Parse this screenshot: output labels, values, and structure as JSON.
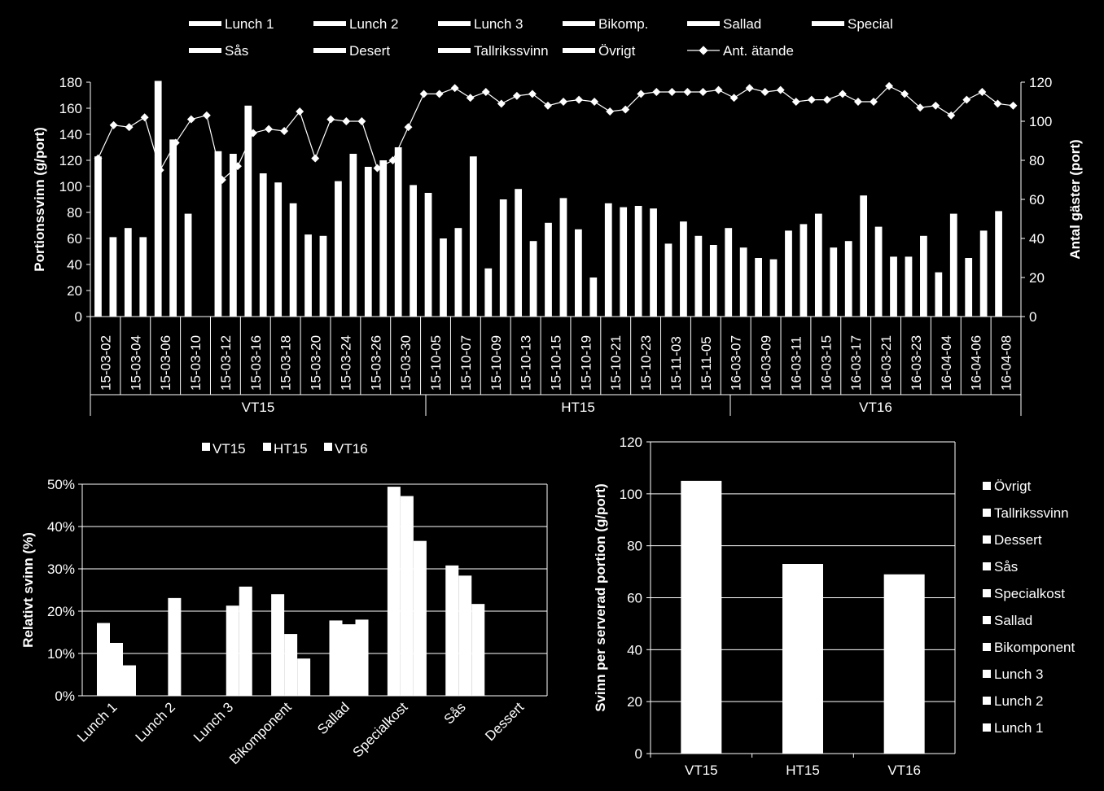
{
  "chart_data": [
    {
      "type": "bar",
      "ylabel": "Portionssvinn (g/port)",
      "y2label": "Antal gäster (port)",
      "ylim": [
        0,
        180
      ],
      "y2lim": [
        0,
        120
      ],
      "yticks": [
        0,
        20,
        40,
        60,
        80,
        100,
        120,
        140,
        160,
        180
      ],
      "y2ticks": [
        0,
        20,
        40,
        60,
        80,
        100,
        120
      ],
      "grid": false,
      "legend_position": "top",
      "legend": [
        "Lunch 1",
        "Lunch 2",
        "Lunch 3",
        "Bikomp.",
        "Sallad",
        "Special",
        "Sås",
        "Desert",
        "Tallrikssvinn",
        "Övrigt",
        "Ant. ätande"
      ],
      "x_labels_shown": [
        "15-03-02",
        "15-03-04",
        "15-03-06",
        "15-03-10",
        "15-03-12",
        "15-03-16",
        "15-03-18",
        "15-03-20",
        "15-03-24",
        "15-03-26",
        "15-03-30",
        "15-10-05",
        "15-10-07",
        "15-10-09",
        "15-10-13",
        "15-10-15",
        "15-10-19",
        "15-10-21",
        "15-10-23",
        "15-11-03",
        "15-11-05",
        "16-03-07",
        "16-03-09",
        "16-03-11",
        "16-03-15",
        "16-03-17",
        "16-03-21",
        "16-03-23",
        "16-04-04",
        "16-04-06",
        "16-04-08"
      ],
      "groups": [
        {
          "label": "VT15",
          "start": 0,
          "count": 22
        },
        {
          "label": "HT15",
          "start": 22,
          "count": 20
        },
        {
          "label": "VT16",
          "start": 42,
          "count": 20
        }
      ],
      "num_slots": 62,
      "bars": [
        {
          "slot": 0,
          "value": 123
        },
        {
          "slot": 2,
          "value": 61
        },
        {
          "slot": 4,
          "value": 68
        },
        {
          "slot": 6,
          "value": 61
        },
        {
          "slot": 8,
          "value": 181
        },
        {
          "slot": 10,
          "value": 136
        },
        {
          "slot": 12,
          "value": 79
        },
        {
          "slot": 16,
          "value": 127
        },
        {
          "slot": 18,
          "value": 125
        },
        {
          "slot": 20,
          "value": 162
        },
        {
          "slot": 22,
          "value": 110
        },
        {
          "slot": 24,
          "value": 103
        },
        {
          "slot": 26,
          "value": 87
        },
        {
          "slot": 28,
          "value": 63
        },
        {
          "slot": 30,
          "value": 62
        },
        {
          "slot": 32,
          "value": 104
        },
        {
          "slot": 34,
          "value": 125
        },
        {
          "slot": 36,
          "value": 115
        },
        {
          "slot": 38,
          "value": 120
        },
        {
          "slot": 40,
          "value": 130
        },
        {
          "slot": 42,
          "value": 101
        },
        {
          "slot": 44,
          "value": 95
        },
        {
          "slot": 46,
          "value": 60
        },
        {
          "slot": 48,
          "value": 68
        },
        {
          "slot": 50,
          "value": 123
        },
        {
          "slot": 52,
          "value": 37
        },
        {
          "slot": 54,
          "value": 90
        },
        {
          "slot": 56,
          "value": 98
        },
        {
          "slot": 58,
          "value": 58
        },
        {
          "slot": 60,
          "value": 72
        },
        {
          "slot": 62,
          "value": 91
        },
        {
          "slot": 64,
          "value": 67
        },
        {
          "slot": 66,
          "value": 30
        },
        {
          "slot": 68,
          "value": 87
        },
        {
          "slot": 70,
          "value": 84
        },
        {
          "slot": 72,
          "value": 85
        },
        {
          "slot": 74,
          "value": 83
        },
        {
          "slot": 76,
          "value": 56
        },
        {
          "slot": 78,
          "value": 73
        },
        {
          "slot": 80,
          "value": 62
        },
        {
          "slot": 82,
          "value": 55
        },
        {
          "slot": 84,
          "value": 68
        },
        {
          "slot": 86,
          "value": 53
        },
        {
          "slot": 88,
          "value": 45
        },
        {
          "slot": 90,
          "value": 44
        },
        {
          "slot": 92,
          "value": 66
        },
        {
          "slot": 94,
          "value": 71
        },
        {
          "slot": 96,
          "value": 79
        },
        {
          "slot": 98,
          "value": 53
        },
        {
          "slot": 100,
          "value": 58
        },
        {
          "slot": 102,
          "value": 93
        },
        {
          "slot": 104,
          "value": 69
        },
        {
          "slot": 106,
          "value": 46
        },
        {
          "slot": 108,
          "value": 46
        },
        {
          "slot": 110,
          "value": 62
        },
        {
          "slot": 112,
          "value": 34
        },
        {
          "slot": 114,
          "value": 79
        },
        {
          "slot": 116,
          "value": 45
        },
        {
          "slot": 118,
          "value": 66
        },
        {
          "slot": 120,
          "value": 81
        }
      ],
      "line": {
        "name": "Ant. ätande",
        "values": [
          81,
          98,
          97,
          102,
          75,
          89,
          101,
          103,
          70,
          77,
          94,
          96,
          95,
          105,
          81,
          101,
          100,
          100,
          76,
          80,
          97,
          114,
          114,
          117,
          112,
          115,
          109,
          113,
          114,
          108,
          110,
          111,
          110,
          105,
          106,
          114,
          115,
          115,
          115,
          115,
          116,
          112,
          117,
          115,
          116,
          110,
          111,
          111,
          114,
          110,
          110,
          118,
          114,
          107,
          108,
          103,
          111,
          115,
          109,
          108
        ]
      }
    },
    {
      "type": "bar",
      "ylabel": "Relativt svinn (%)",
      "ylim": [
        0,
        50
      ],
      "yticks": [
        "0%",
        "10%",
        "20%",
        "30%",
        "40%",
        "50%"
      ],
      "grid": true,
      "legend_position": "top",
      "categories": [
        "Lunch 1",
        "Lunch 2",
        "Lunch 3",
        "Bikomponent",
        "Sallad",
        "Specialkost",
        "Sås",
        "Dessert"
      ],
      "series": [
        {
          "name": "VT15",
          "values": [
            17.2,
            0,
            0,
            24.0,
            17.8,
            49.4,
            30.8,
            0
          ]
        },
        {
          "name": "HT15",
          "values": [
            12.5,
            23.1,
            21.3,
            14.6,
            16.9,
            47.2,
            28.4,
            0
          ]
        },
        {
          "name": "VT16",
          "values": [
            7.2,
            0,
            25.8,
            8.8,
            18.0,
            36.6,
            21.7,
            0
          ]
        }
      ]
    },
    {
      "type": "bar",
      "ylabel": "Svinn per serverad portion (g/port)",
      "ylim": [
        0,
        120
      ],
      "yticks": [
        0,
        20,
        40,
        60,
        80,
        100,
        120
      ],
      "grid": true,
      "legend_position": "right",
      "categories": [
        "VT15",
        "HT15",
        "VT16"
      ],
      "values": [
        105,
        73,
        69
      ],
      "legend": [
        "Övrigt",
        "Tallrikssvinn",
        "Dessert",
        "Sås",
        "Specialkost",
        "Sallad",
        "Bikomponent",
        "Lunch 3",
        "Lunch 2",
        "Lunch 1"
      ]
    }
  ]
}
